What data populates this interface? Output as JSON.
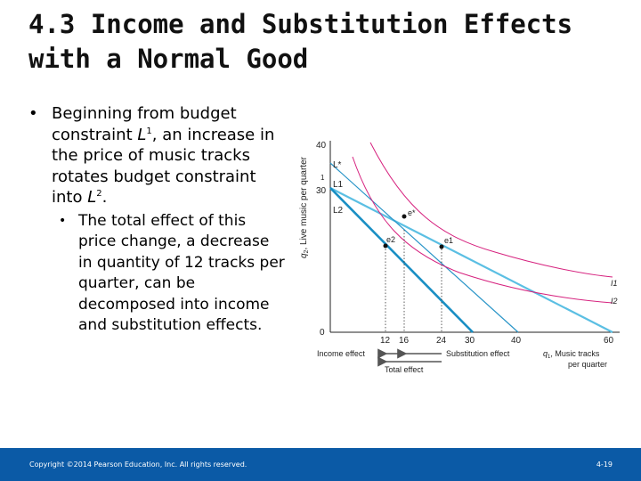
{
  "slide": {
    "title_line1": "4.3  Income and Substitution Effects",
    "title_line2": "with a Normal Good",
    "bullet1": {
      "part1": "Beginning from budget constraint ",
      "L1_letter": "L",
      "L1_sup": "1",
      "part2": ", an increase in the price of music tracks rotates budget constraint into ",
      "L2_letter": "L",
      "L2_sup": "2",
      "part3": "."
    },
    "bullet2": "The total effect of this price change, a decrease in quantity of 12 tracks per quarter, can be decomposed into income and substitution effects."
  },
  "figure": {
    "y_axis_label": "q2, Live music per quarter",
    "y_axis_letter": "q",
    "y_axis_sub": "2",
    "y_axis_text": ", Live music per quarter",
    "x_axis_letter": "q",
    "x_axis_sub": "1",
    "x_axis_text_line1": ", Music tracks",
    "x_axis_text_line2": "per quarter",
    "y_ticks": [
      "40",
      "30",
      "0"
    ],
    "x_ticks": [
      "12",
      "16",
      "24",
      "30",
      "40",
      "60"
    ],
    "line_labels": {
      "L_star": "L*",
      "L1": "L1",
      "L2": "L2",
      "I1": "I1",
      "I2": "I2"
    },
    "y_small_label": "1",
    "points": {
      "e_star": "e*",
      "e1": "e1",
      "e2": "e2"
    },
    "effects": {
      "income": "Income effect",
      "substitution": "Substitution effect",
      "total": "Total effect"
    },
    "colors": {
      "budget": "#5bbfe3",
      "budget_dark": "#1a8fc4",
      "indifference": "#d6217e",
      "arrow": "#555555"
    }
  },
  "footer": {
    "copyright": "Copyright ©2014 Pearson Education, Inc. All rights reserved.",
    "page": "4-19"
  }
}
